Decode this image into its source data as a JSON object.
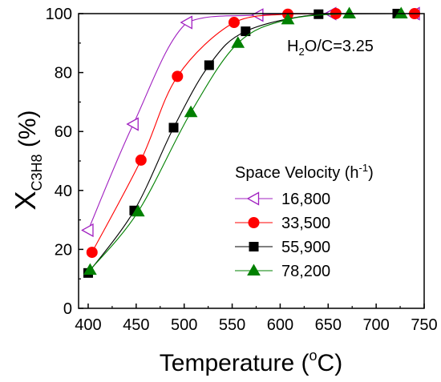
{
  "chart_data": {
    "type": "line",
    "title": "",
    "xlabel": "Temperature (oC)",
    "ylabel": "XC3H8 (%)",
    "xlim": [
      390,
      750
    ],
    "ylim": [
      0,
      100
    ],
    "xticks": [
      400,
      450,
      500,
      550,
      600,
      650,
      700,
      750
    ],
    "yticks": [
      0,
      20,
      40,
      60,
      80,
      100
    ],
    "annotation": "H2O/C=3.25",
    "legend": {
      "title": "Space Velocity (h-1)",
      "position": "center-right"
    },
    "grid": false,
    "series": [
      {
        "name": "16,800",
        "color": "#a020c0",
        "marker": "triangle-left-open",
        "points": [
          [
            400,
            26.5
          ],
          [
            447,
            62.5
          ],
          [
            503,
            97
          ],
          [
            577,
            99.5
          ],
          [
            653,
            100
          ],
          [
            740,
            100
          ]
        ]
      },
      {
        "name": "33,500",
        "color": "#ff0000",
        "marker": "circle-filled",
        "points": [
          [
            404,
            19
          ],
          [
            455,
            50.3
          ],
          [
            493,
            78.7
          ],
          [
            552,
            97
          ],
          [
            608,
            99.8
          ],
          [
            658,
            100
          ],
          [
            740,
            100
          ]
        ]
      },
      {
        "name": "55,900",
        "color": "#000000",
        "marker": "square-filled",
        "points": [
          [
            400,
            12
          ],
          [
            448,
            33.2
          ],
          [
            489,
            61.3
          ],
          [
            526,
            82.5
          ],
          [
            564,
            94
          ],
          [
            640,
            99.8
          ],
          [
            722,
            100
          ]
        ]
      },
      {
        "name": "78,200",
        "color": "#008000",
        "marker": "triangle-up-filled",
        "points": [
          [
            402,
            13
          ],
          [
            452,
            32.8
          ],
          [
            507,
            66.5
          ],
          [
            556,
            90
          ],
          [
            608,
            98
          ],
          [
            672,
            100
          ],
          [
            726,
            100
          ]
        ]
      }
    ]
  },
  "labels": {
    "xlabel_main": "Temperature (",
    "xlabel_sup": "o",
    "xlabel_end": "C)",
    "ylabel_main": "X",
    "ylabel_sub": "C3H8",
    "ylabel_end": " (%)",
    "annot_h": "H",
    "annot_2": "2",
    "annot_rest": "O/C=3.25",
    "legend_title_main": "Space Velocity (h",
    "legend_title_sup": "-1",
    "legend_title_end": ")"
  }
}
